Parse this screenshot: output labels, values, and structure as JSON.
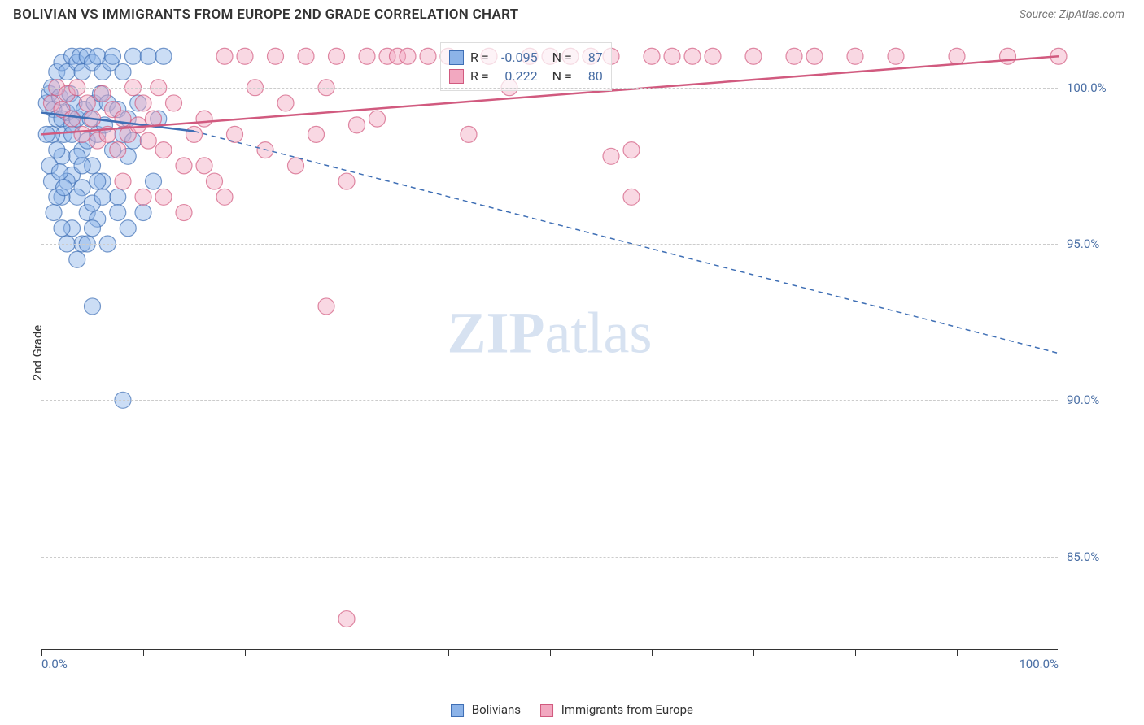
{
  "header": {
    "title": "BOLIVIAN VS IMMIGRANTS FROM EUROPE 2ND GRADE CORRELATION CHART",
    "source": "Source: ZipAtlas.com"
  },
  "watermark": {
    "zip": "ZIP",
    "atlas": "atlas"
  },
  "y_axis_label": "2nd Grade",
  "chart": {
    "type": "scatter",
    "background_color": "#ffffff",
    "grid_color": "#cccccc",
    "axis_color": "#333333",
    "xlim": [
      0,
      100
    ],
    "ylim": [
      82,
      101.5
    ],
    "x_ticks": [
      0,
      10,
      20,
      30,
      40,
      50,
      60,
      70,
      80,
      90,
      100
    ],
    "x_tick_labels": {
      "0": "0.0%",
      "100": "100.0%"
    },
    "y_ticks": [
      85,
      90,
      95,
      100
    ],
    "y_tick_labels": [
      "85.0%",
      "90.0%",
      "95.0%",
      "100.0%"
    ],
    "marker_radius": 10,
    "marker_opacity": 0.45,
    "series": [
      {
        "name": "Bolivians",
        "color_stroke": "#3f6fb5",
        "color_fill": "#8cb3e8",
        "r_label": "R =",
        "r_value": "-0.095",
        "n_label": "N =",
        "n_value": "87",
        "trend": {
          "x1": 0,
          "y1": 99.2,
          "x2": 15,
          "y2": 98.6,
          "dash_x2": 100,
          "dash_y2": 91.5
        },
        "points": [
          [
            0.5,
            99.5
          ],
          [
            0.8,
            99.8
          ],
          [
            1.0,
            100.0
          ],
          [
            1.2,
            99.3
          ],
          [
            1.5,
            99.0
          ],
          [
            1.5,
            100.5
          ],
          [
            1.8,
            99.7
          ],
          [
            2.0,
            100.8
          ],
          [
            2.0,
            99.0
          ],
          [
            2.2,
            98.5
          ],
          [
            2.5,
            99.2
          ],
          [
            2.5,
            100.5
          ],
          [
            2.8,
            99.8
          ],
          [
            3.0,
            101.0
          ],
          [
            3.0,
            98.8
          ],
          [
            3.2,
            99.5
          ],
          [
            3.5,
            100.8
          ],
          [
            3.5,
            99.0
          ],
          [
            3.8,
            101.0
          ],
          [
            4.0,
            98.0
          ],
          [
            4.0,
            100.5
          ],
          [
            4.2,
            99.3
          ],
          [
            4.5,
            101.0
          ],
          [
            4.5,
            98.3
          ],
          [
            4.8,
            99.0
          ],
          [
            5.0,
            100.8
          ],
          [
            5.0,
            97.5
          ],
          [
            5.2,
            99.5
          ],
          [
            5.5,
            101.0
          ],
          [
            5.5,
            98.5
          ],
          [
            5.8,
            99.8
          ],
          [
            6.0,
            100.5
          ],
          [
            6.0,
            97.0
          ],
          [
            6.2,
            98.8
          ],
          [
            6.5,
            99.5
          ],
          [
            6.8,
            100.8
          ],
          [
            7.0,
            98.0
          ],
          [
            7.0,
            101.0
          ],
          [
            7.5,
            99.3
          ],
          [
            7.5,
            96.5
          ],
          [
            8.0,
            98.5
          ],
          [
            8.0,
            100.5
          ],
          [
            8.5,
            99.0
          ],
          [
            8.5,
            97.8
          ],
          [
            9.0,
            101.0
          ],
          [
            9.0,
            98.3
          ],
          [
            9.5,
            99.5
          ],
          [
            2.0,
            97.8
          ],
          [
            3.0,
            97.2
          ],
          [
            4.0,
            96.8
          ],
          [
            4.5,
            96.0
          ],
          [
            5.0,
            96.3
          ],
          [
            5.5,
            95.8
          ],
          [
            6.0,
            96.5
          ],
          [
            2.5,
            97.0
          ],
          [
            3.5,
            96.5
          ],
          [
            1.0,
            98.5
          ],
          [
            1.5,
            98.0
          ],
          [
            2.0,
            96.5
          ],
          [
            3.0,
            95.5
          ],
          [
            4.0,
            95.0
          ],
          [
            5.0,
            95.5
          ],
          [
            6.5,
            95.0
          ],
          [
            7.5,
            96.0
          ],
          [
            8.5,
            95.5
          ],
          [
            2.5,
            95.0
          ],
          [
            3.5,
            94.5
          ],
          [
            4.5,
            95.0
          ],
          [
            10.0,
            96.0
          ],
          [
            10.5,
            101.0
          ],
          [
            11.0,
            97.0
          ],
          [
            11.5,
            99.0
          ],
          [
            12.0,
            101.0
          ],
          [
            5.0,
            93.0
          ],
          [
            8.0,
            90.0
          ],
          [
            1.0,
            97.0
          ],
          [
            1.5,
            96.5
          ],
          [
            2.0,
            95.5
          ],
          [
            0.5,
            98.5
          ],
          [
            0.8,
            97.5
          ],
          [
            1.2,
            96.0
          ],
          [
            1.8,
            97.3
          ],
          [
            2.2,
            96.8
          ],
          [
            3.0,
            98.5
          ],
          [
            3.5,
            97.8
          ],
          [
            4.0,
            97.5
          ],
          [
            5.5,
            97.0
          ]
        ]
      },
      {
        "name": "Immigants from Europe",
        "display_name": "Immigrants from Europe",
        "color_stroke": "#d15a7f",
        "color_fill": "#f2a8c0",
        "r_label": "R =",
        "r_value": "0.222",
        "n_label": "N =",
        "n_value": "80",
        "trend": {
          "x1": 0,
          "y1": 98.5,
          "x2": 100,
          "y2": 101.0
        },
        "points": [
          [
            1.0,
            99.5
          ],
          [
            1.5,
            100.0
          ],
          [
            2.0,
            99.3
          ],
          [
            2.5,
            99.8
          ],
          [
            3.0,
            99.0
          ],
          [
            3.5,
            100.0
          ],
          [
            4.0,
            98.5
          ],
          [
            4.5,
            99.5
          ],
          [
            5.0,
            99.0
          ],
          [
            5.5,
            98.3
          ],
          [
            6.0,
            99.8
          ],
          [
            6.5,
            98.5
          ],
          [
            7.0,
            99.3
          ],
          [
            7.5,
            98.0
          ],
          [
            8.0,
            99.0
          ],
          [
            8.5,
            98.5
          ],
          [
            9.0,
            100.0
          ],
          [
            9.5,
            98.8
          ],
          [
            10.0,
            99.5
          ],
          [
            10.5,
            98.3
          ],
          [
            11.0,
            99.0
          ],
          [
            11.5,
            100.0
          ],
          [
            12.0,
            98.0
          ],
          [
            13.0,
            99.5
          ],
          [
            14.0,
            97.5
          ],
          [
            15.0,
            98.5
          ],
          [
            16.0,
            99.0
          ],
          [
            17.0,
            97.0
          ],
          [
            18.0,
            101.0
          ],
          [
            19.0,
            98.5
          ],
          [
            20.0,
            101.0
          ],
          [
            21.0,
            100.0
          ],
          [
            22.0,
            98.0
          ],
          [
            23.0,
            101.0
          ],
          [
            24.0,
            99.5
          ],
          [
            25.0,
            97.5
          ],
          [
            26.0,
            101.0
          ],
          [
            27.0,
            98.5
          ],
          [
            28.0,
            100.0
          ],
          [
            29.0,
            101.0
          ],
          [
            30.0,
            97.0
          ],
          [
            31.0,
            98.8
          ],
          [
            32.0,
            101.0
          ],
          [
            33.0,
            99.0
          ],
          [
            34.0,
            101.0
          ],
          [
            35.0,
            101.0
          ],
          [
            36.0,
            101.0
          ],
          [
            38.0,
            101.0
          ],
          [
            40.0,
            101.0
          ],
          [
            42.0,
            98.5
          ],
          [
            44.0,
            101.0
          ],
          [
            46.0,
            100.0
          ],
          [
            48.0,
            101.0
          ],
          [
            50.0,
            101.0
          ],
          [
            52.0,
            101.0
          ],
          [
            54.0,
            101.0
          ],
          [
            56.0,
            101.0
          ],
          [
            58.0,
            98.0
          ],
          [
            60.0,
            101.0
          ],
          [
            62.0,
            101.0
          ],
          [
            56.0,
            97.8
          ],
          [
            58.0,
            96.5
          ],
          [
            64.0,
            101.0
          ],
          [
            66.0,
            101.0
          ],
          [
            70.0,
            101.0
          ],
          [
            74.0,
            101.0
          ],
          [
            76.0,
            101.0
          ],
          [
            80.0,
            101.0
          ],
          [
            84.0,
            101.0
          ],
          [
            90.0,
            101.0
          ],
          [
            95.0,
            101.0
          ],
          [
            100.0,
            101.0
          ],
          [
            28.0,
            93.0
          ],
          [
            30.0,
            83.0
          ],
          [
            12.0,
            96.5
          ],
          [
            14.0,
            96.0
          ],
          [
            16.0,
            97.5
          ],
          [
            18.0,
            96.5
          ],
          [
            8.0,
            97.0
          ],
          [
            10.0,
            96.5
          ]
        ]
      }
    ]
  },
  "bottom_legend": {
    "items": [
      {
        "label": "Bolivians",
        "stroke": "#3f6fb5",
        "fill": "#8cb3e8"
      },
      {
        "label": "Immigrants from Europe",
        "stroke": "#d15a7f",
        "fill": "#f2a8c0"
      }
    ]
  }
}
